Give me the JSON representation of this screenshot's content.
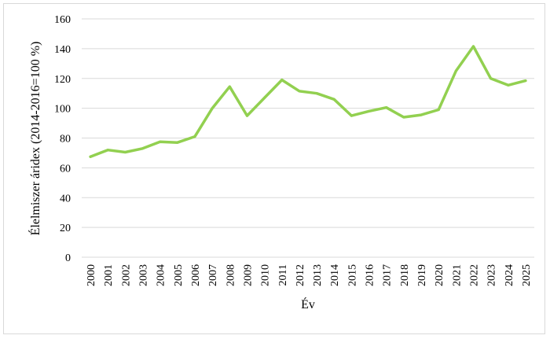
{
  "chart_data": {
    "type": "line",
    "title": "",
    "xlabel": "Év",
    "ylabel": "Élelmiszer áridex (2014-2016=100 %)",
    "ylim": [
      0,
      160
    ],
    "yticks": [
      0,
      20,
      40,
      60,
      80,
      100,
      120,
      140,
      160
    ],
    "grid": true,
    "legend": "none",
    "categories": [
      "2000",
      "2001",
      "2002",
      "2003",
      "2004",
      "2005",
      "2006",
      "2007",
      "2008",
      "2009",
      "2010",
      "2011",
      "2012",
      "2013",
      "2014",
      "2015",
      "2016",
      "2017",
      "2018",
      "2019",
      "2020",
      "2021",
      "2022",
      "2023",
      "2024",
      "2025"
    ],
    "series": [
      {
        "color": "#92d050",
        "values": [
          67.5,
          72,
          70.5,
          73,
          77.5,
          77,
          81,
          100,
          114.5,
          95,
          107,
          119,
          111.5,
          110,
          106,
          95,
          98,
          100.5,
          94,
          95.5,
          99,
          125,
          141.5,
          120,
          115.5,
          118.5
        ]
      }
    ]
  }
}
